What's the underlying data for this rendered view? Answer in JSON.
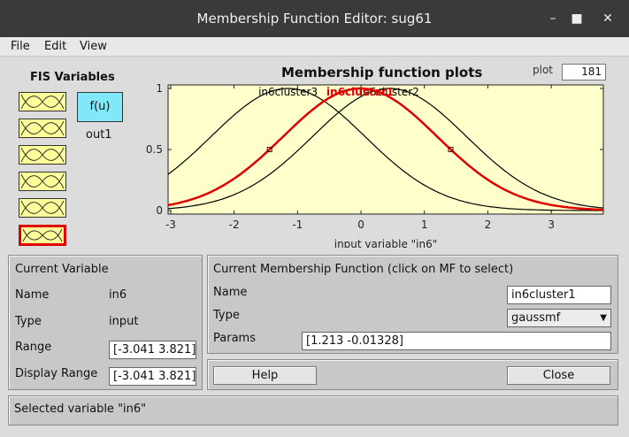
{
  "window": {
    "title": "Membership Function Editor: sug61"
  },
  "menu": {
    "file": "File",
    "edit": "Edit",
    "view": "View"
  },
  "fis": {
    "title": "FIS Variables",
    "output_box": "f(u)",
    "output_name": "out1"
  },
  "plot": {
    "title": "Membership function plots",
    "points_label": "plot",
    "points_value": "181"
  },
  "chart_data": {
    "type": "line",
    "title": "",
    "xlabel": "input variable \"in6\"",
    "xlim": [
      -3.041,
      3.821
    ],
    "ylim": [
      0,
      1
    ],
    "x_ticks": [
      "-3",
      "-2",
      "-1",
      "0",
      "1",
      "2",
      "3"
    ],
    "y_ticks": [
      "0",
      "0.5",
      "1"
    ],
    "series": [
      {
        "name": "in6cluster3",
        "sigma": 1.213,
        "center": -1.15,
        "color": "#000000",
        "selected": false
      },
      {
        "name": "in6cluster1",
        "sigma": 1.213,
        "center": -0.01328,
        "color": "#e00000",
        "selected": true
      },
      {
        "name": "in6cluster2",
        "sigma": 1.213,
        "center": 0.45,
        "color": "#000000",
        "selected": false
      }
    ]
  },
  "current_variable": {
    "heading": "Current Variable",
    "name_label": "Name",
    "name_value": "in6",
    "type_label": "Type",
    "type_value": "input",
    "range_label": "Range",
    "range_value": "[-3.041 3.821]",
    "display_range_label": "Display Range",
    "display_range_value": "[-3.041 3.821]"
  },
  "current_mf": {
    "heading": "Current Membership Function (click on MF to select)",
    "name_label": "Name",
    "name_value": "in6cluster1",
    "type_label": "Type",
    "type_value": "gaussmf",
    "params_label": "Params",
    "params_value": "[1.213 -0.01328]"
  },
  "buttons": {
    "help": "Help",
    "close": "Close"
  },
  "status": {
    "text": "Selected variable \"in6\""
  }
}
